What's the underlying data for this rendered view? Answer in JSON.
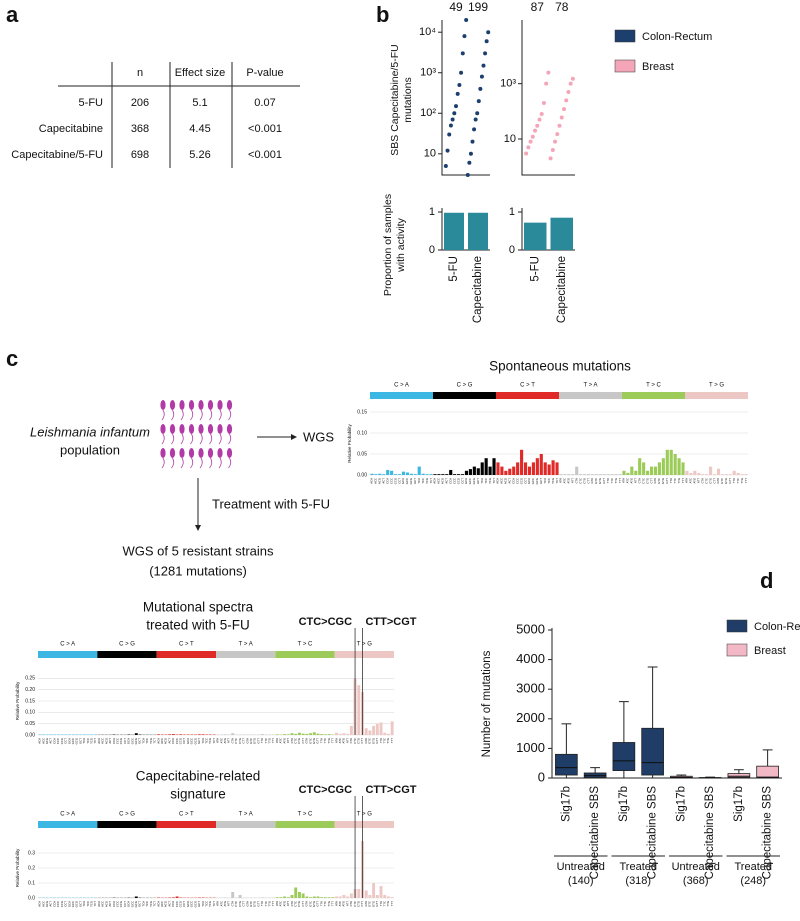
{
  "panel_labels": [
    "a",
    "b",
    "c",
    "d"
  ],
  "table": {
    "header": [
      "n",
      "Effect size",
      "P-value"
    ],
    "rows": [
      [
        "5-FU",
        "206",
        "5.1",
        "0.07"
      ],
      [
        "Capecitabine",
        "368",
        "4.45",
        "<0.001"
      ],
      [
        "Capecitabine/5-FU",
        "698",
        "5.26",
        "<0.001"
      ]
    ]
  },
  "diagram": {
    "organism": "Leishmania infantum",
    "population": "population",
    "wgs": "WGS",
    "treatment": "Treatment with 5-FU",
    "resistant": [
      "WGS of 5 resistant strains",
      "(1281 mutations)"
    ]
  },
  "c_contexts": [
    "ACA",
    "ACC",
    "ACG",
    "ACT",
    "CCA",
    "CCC",
    "CCG",
    "CCT",
    "GCA",
    "GCC",
    "GCG",
    "GCT",
    "TCA",
    "TCC",
    "TCG",
    "TCT"
  ],
  "t_contexts": [
    "ATA",
    "ATC",
    "ATG",
    "ATT",
    "CTA",
    "CTC",
    "CTG",
    "CTT",
    "GTA",
    "GTC",
    "GTG",
    "GTT",
    "TTA",
    "TTC",
    "TTG",
    "TTT"
  ],
  "chart_data": [
    {
      "type": "scatter",
      "log": true,
      "ylabel": [
        "SBS Capecitabine/5-FU",
        "mutations"
      ],
      "series": [
        {
          "name": "Colon-Rectum",
          "color": "#1c3f6e",
          "counts": [
            49,
            199
          ],
          "ylim": [
            3,
            20000
          ],
          "yticks": [
            {
              "value": 10,
              "label": "10"
            },
            {
              "value": 100,
              "label": "10²"
            },
            {
              "value": 1000,
              "label": "10³"
            },
            {
              "value": 10000,
              "label": "10⁴"
            }
          ],
          "groups": [
            [
              5,
              12,
              30,
              50,
              70,
              100,
              150,
              300,
              500,
              1000,
              3000,
              8000,
              20000
            ],
            [
              3,
              6,
              10,
              20,
              40,
              70,
              100,
              200,
              400,
              800,
              1500,
              3000,
              6000,
              10000
            ]
          ]
        },
        {
          "name": "Breast",
          "color": "#f4a6b8",
          "counts": [
            87,
            78
          ],
          "ylim": [
            0.5,
            200000
          ],
          "yticks": [
            10,
            {
              "value": 1000,
              "label": "10³"
            }
          ],
          "groups": [
            [
              3,
              5,
              8,
              12,
              20,
              30,
              50,
              80,
              200,
              1000,
              2500
            ],
            [
              2,
              4,
              8,
              15,
              30,
              60,
              120,
              250,
              500,
              1000,
              1500
            ]
          ]
        }
      ]
    },
    {
      "type": "bar",
      "ylabel": [
        "Proportion of samples",
        "with activity"
      ],
      "categories": [
        "5-FU",
        "Capecitabine"
      ],
      "color": "#2a8a9a",
      "ylim": [
        0,
        1
      ],
      "yticks": [
        0,
        1
      ],
      "panels": [
        {
          "values": [
            0.98,
            0.98
          ]
        },
        {
          "values": [
            0.72,
            0.85
          ]
        }
      ]
    },
    {
      "type": "spectrum",
      "title": [
        "Spontaneous mutations"
      ],
      "ylabel": "Relative Probability",
      "mutation_types": [
        {
          "label": "C > A",
          "color": "#3cb6e3"
        },
        {
          "label": "C > G",
          "color": "#000000"
        },
        {
          "label": "C > T",
          "color": "#e02a27"
        },
        {
          "label": "T > A",
          "color": "#c7c7c7"
        },
        {
          "label": "T > C",
          "color": "#9ccb59"
        },
        {
          "label": "T > G",
          "color": "#edc7c3"
        }
      ],
      "ylim": [
        0,
        0.15
      ],
      "yticks": [
        {
          "value": 0,
          "label": "0.00"
        },
        0.05,
        {
          "value": 0.1,
          "label": "0.10"
        },
        0.15
      ],
      "annotations": [],
      "values": [
        0.003,
        0.002,
        0.003,
        0.002,
        0.012,
        0.01,
        0.002,
        0.002,
        0.008,
        0.006,
        0.003,
        0.002,
        0.02,
        0.003,
        0.002,
        0.002,
        0.002,
        0.002,
        0.002,
        0.002,
        0.012,
        0.002,
        0.002,
        0.002,
        0.01,
        0.014,
        0.02,
        0.016,
        0.03,
        0.04,
        0.02,
        0.04,
        0.03,
        0.02,
        0.01,
        0.015,
        0.02,
        0.03,
        0.06,
        0.03,
        0.02,
        0.03,
        0.04,
        0.05,
        0.03,
        0.025,
        0.035,
        0.03,
        0.002,
        0.002,
        0.002,
        0.002,
        0.02,
        0.002,
        0.002,
        0.002,
        0.002,
        0.002,
        0.002,
        0.002,
        0.002,
        0.002,
        0.002,
        0.002,
        0.01,
        0.005,
        0.02,
        0.01,
        0.04,
        0.03,
        0.01,
        0.02,
        0.02,
        0.03,
        0.04,
        0.06,
        0.06,
        0.05,
        0.04,
        0.03,
        0.01,
        0.005,
        0.01,
        0.005,
        0.002,
        0.002,
        0.02,
        0.002,
        0.015,
        0.002,
        0.002,
        0.002,
        0.01,
        0.005,
        0.002,
        0.002
      ]
    },
    {
      "type": "spectrum",
      "title": [
        "Mutational spectra",
        "treated with 5-FU"
      ],
      "ylabel": "Relative Probability",
      "mutation_types": [
        {
          "label": "C > A",
          "color": "#3cb6e3"
        },
        {
          "label": "C > G",
          "color": "#000000"
        },
        {
          "label": "C > T",
          "color": "#e02a27"
        },
        {
          "label": "T > A",
          "color": "#c7c7c7"
        },
        {
          "label": "T > C",
          "color": "#9ccb59"
        },
        {
          "label": "T > G",
          "color": "#edc7c3"
        }
      ],
      "ylim": [
        0,
        0.3
      ],
      "yticks": [
        {
          "value": 0,
          "label": "0.00"
        },
        0.05,
        {
          "value": 0.1,
          "label": "0.10"
        },
        0.15,
        {
          "value": 0.2,
          "label": "0.20"
        },
        0.25
      ],
      "annotations": [
        "CTC>CGC",
        "CTT>CGT"
      ],
      "values": [
        0.002,
        0.002,
        0.002,
        0.002,
        0.002,
        0.002,
        0.002,
        0.002,
        0.002,
        0.002,
        0.002,
        0.002,
        0.002,
        0.002,
        0.002,
        0.002,
        0.001,
        0.001,
        0.001,
        0.001,
        0.002,
        0.001,
        0.001,
        0.001,
        0.002,
        0.001,
        0.008,
        0.002,
        0.001,
        0.001,
        0.001,
        0.001,
        0.003,
        0.002,
        0.002,
        0.003,
        0.004,
        0.002,
        0.003,
        0.002,
        0.002,
        0.002,
        0.002,
        0.003,
        0.003,
        0.002,
        0.002,
        0.002,
        0.002,
        0.002,
        0.003,
        0.002,
        0.008,
        0.002,
        0.002,
        0.002,
        0.002,
        0.002,
        0.002,
        0.002,
        0.004,
        0.002,
        0.002,
        0.002,
        0.003,
        0.002,
        0.004,
        0.003,
        0.008,
        0.005,
        0.01,
        0.006,
        0.005,
        0.008,
        0.012,
        0.006,
        0.004,
        0.003,
        0.004,
        0.002,
        0.01,
        0.005,
        0.008,
        0.005,
        0.04,
        0.25,
        0.22,
        0.19,
        0.03,
        0.02,
        0.04,
        0.05,
        0.055,
        0.01,
        0.005,
        0.06
      ]
    },
    {
      "type": "spectrum",
      "title": [
        "Capecitabine-related",
        "signature"
      ],
      "ylabel": "Relative Probability",
      "mutation_types": [
        {
          "label": "C > A",
          "color": "#3cb6e3"
        },
        {
          "label": "C > G",
          "color": "#000000"
        },
        {
          "label": "C > T",
          "color": "#e02a27"
        },
        {
          "label": "T > A",
          "color": "#c7c7c7"
        },
        {
          "label": "T > C",
          "color": "#9ccb59"
        },
        {
          "label": "T > G",
          "color": "#edc7c3"
        }
      ],
      "ylim": [
        0,
        0.4
      ],
      "yticks": [
        {
          "value": 0,
          "label": "0.0"
        },
        0.1,
        0.2,
        0.3
      ],
      "annotations": [
        "CTC>CGC",
        "CTT>CGT"
      ],
      "values": [
        0.002,
        0.002,
        0.002,
        0.002,
        0.002,
        0.002,
        0.002,
        0.002,
        0.002,
        0.002,
        0.002,
        0.002,
        0.002,
        0.002,
        0.002,
        0.002,
        0.001,
        0.001,
        0.001,
        0.001,
        0.002,
        0.001,
        0.001,
        0.001,
        0.002,
        0.001,
        0.01,
        0.002,
        0.001,
        0.001,
        0.001,
        0.001,
        0.003,
        0.002,
        0.002,
        0.003,
        0.004,
        0.01,
        0.003,
        0.002,
        0.002,
        0.002,
        0.002,
        0.003,
        0.003,
        0.002,
        0.002,
        0.002,
        0.002,
        0.002,
        0.003,
        0.002,
        0.04,
        0.002,
        0.02,
        0.002,
        0.002,
        0.002,
        0.002,
        0.002,
        0.004,
        0.002,
        0.002,
        0.002,
        0.005,
        0.005,
        0.01,
        0.005,
        0.02,
        0.07,
        0.04,
        0.03,
        0.01,
        0.005,
        0.01,
        0.01,
        0.005,
        0.005,
        0.005,
        0.005,
        0.01,
        0.01,
        0.02,
        0.01,
        0.03,
        0.06,
        0.06,
        0.38,
        0.05,
        0.02,
        0.1,
        0.02,
        0.08,
        0.02,
        0.01,
        0.005
      ]
    },
    {
      "type": "box",
      "ylabel": "Number of mutations",
      "categories": [
        "Sig17b",
        "Capecitabine SBS",
        "Sig17b",
        "Capecitabine SBS",
        "Sig17b",
        "Capecitabine SBS",
        "Sig17b",
        "Capecitabine SBS"
      ],
      "groups": [
        {
          "label": "Untreated",
          "n": "(140)"
        },
        {
          "label": "Treated",
          "n": "(318)"
        },
        {
          "label": "Untreated",
          "n": "(368)"
        },
        {
          "label": "Treated",
          "n": "(248)"
        }
      ],
      "ylim": [
        0,
        5000
      ],
      "yticks": [
        0,
        1000,
        2000,
        3000,
        4000,
        5000
      ],
      "series": [
        {
          "name": "Colon-Rectum",
          "color": "#1f3d66",
          "boxes": [
            {
              "min": 0,
              "q1": 100,
              "median": 350,
              "q3": 800,
              "max": 1830
            },
            {
              "min": 0,
              "q1": 20,
              "median": 80,
              "q3": 170,
              "max": 350
            },
            {
              "min": 0,
              "q1": 250,
              "median": 580,
              "q3": 1200,
              "max": 2580
            },
            {
              "min": 0,
              "q1": 100,
              "median": 520,
              "q3": 1680,
              "max": 3750
            },
            null,
            null,
            null,
            null
          ]
        },
        {
          "name": "Breast",
          "color": "#f2b8c6",
          "boxes": [
            null,
            null,
            null,
            null,
            {
              "min": 0,
              "q1": 5,
              "median": 20,
              "q3": 60,
              "max": 100
            },
            {
              "min": 0,
              "q1": 0,
              "median": 5,
              "q3": 15,
              "max": 30
            },
            {
              "min": 0,
              "q1": 20,
              "median": 60,
              "q3": 150,
              "max": 280
            },
            {
              "min": 0,
              "q1": 10,
              "median": 30,
              "q3": 400,
              "max": 950
            }
          ]
        }
      ]
    }
  ]
}
